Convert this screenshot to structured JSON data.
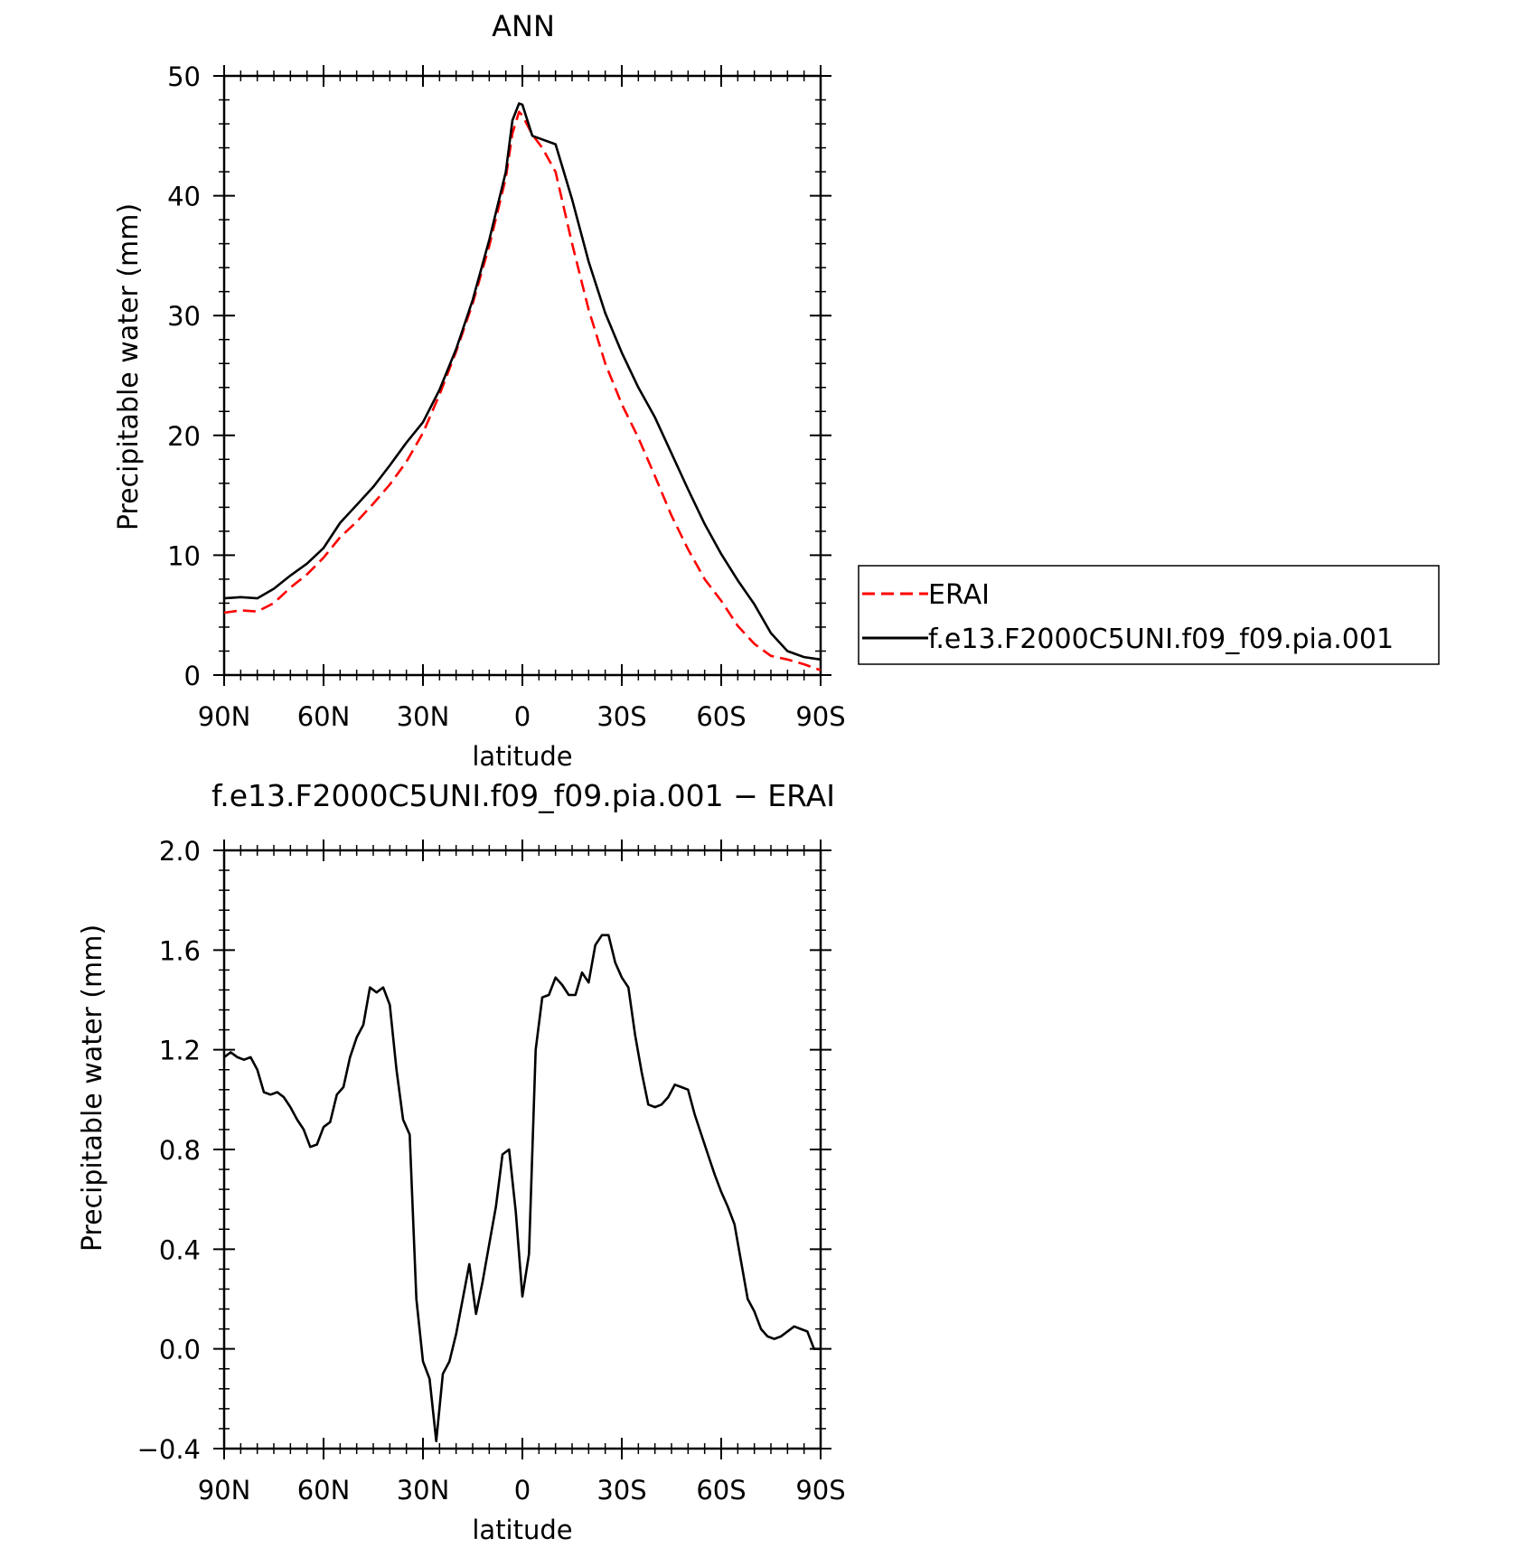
{
  "chart_data": [
    {
      "type": "line",
      "title": "ANN",
      "xlabel": "latitude",
      "ylabel": "Precipitable water (mm)",
      "x_ticks": [
        "90N",
        "60N",
        "30N",
        "0",
        "30S",
        "60S",
        "90S"
      ],
      "xlim": [
        -90,
        90
      ],
      "ylim": [
        0,
        50
      ],
      "y_ticks": [
        "0",
        "10",
        "20",
        "30",
        "40",
        "50"
      ],
      "grid": false,
      "legend": "right",
      "series": [
        {
          "name": "ERAI",
          "color": "#ff0000",
          "dash": "dashed",
          "x": [
            -90,
            -85,
            -80,
            -75,
            -70,
            -65,
            -60,
            -55,
            -50,
            -45,
            -40,
            -35,
            -30,
            -25,
            -20,
            -15,
            -10,
            -5,
            -3,
            -1,
            0,
            3,
            6,
            10,
            15,
            20,
            25,
            30,
            35,
            40,
            45,
            50,
            55,
            60,
            65,
            70,
            75,
            80,
            85,
            90
          ],
          "values": [
            5.2,
            5.4,
            5.3,
            6.0,
            7.3,
            8.4,
            9.8,
            11.5,
            12.8,
            14.3,
            15.9,
            17.8,
            20.2,
            23.4,
            27.0,
            31.0,
            35.8,
            41.5,
            45.2,
            47.0,
            46.7,
            45.1,
            44.0,
            42.0,
            36.0,
            30.5,
            26.0,
            22.6,
            19.8,
            16.6,
            13.3,
            10.5,
            8.0,
            6.2,
            4.1,
            2.6,
            1.6,
            1.3,
            0.9,
            0.4
          ]
        },
        {
          "name": "f.e13.F2000C5UNI.f09_f09.pia.001",
          "color": "#000000",
          "dash": "solid",
          "x": [
            -90,
            -85,
            -80,
            -75,
            -70,
            -65,
            -60,
            -55,
            -50,
            -45,
            -40,
            -35,
            -30,
            -25,
            -20,
            -15,
            -10,
            -5,
            -3,
            -1,
            0,
            3,
            6,
            10,
            15,
            20,
            25,
            30,
            35,
            40,
            45,
            50,
            55,
            60,
            65,
            70,
            75,
            80,
            85,
            90
          ],
          "values": [
            6.4,
            6.5,
            6.4,
            7.2,
            8.3,
            9.3,
            10.6,
            12.7,
            14.2,
            15.7,
            17.5,
            19.4,
            21.1,
            23.8,
            27.2,
            31.3,
            36.3,
            42.0,
            46.3,
            47.7,
            47.6,
            45.0,
            44.7,
            44.3,
            39.7,
            34.5,
            30.2,
            26.9,
            24.0,
            21.5,
            18.5,
            15.5,
            12.6,
            10.1,
            7.9,
            5.9,
            3.5,
            2.0,
            1.5,
            1.3
          ]
        }
      ]
    },
    {
      "type": "line",
      "title": "f.e13.F2000C5UNI.f09_f09.pia.001 − ERAI",
      "xlabel": "latitude",
      "ylabel": "Precipitable water (mm)",
      "x_ticks": [
        "90N",
        "60N",
        "30N",
        "0",
        "30S",
        "60S",
        "90S"
      ],
      "xlim": [
        -90,
        90
      ],
      "ylim": [
        -0.4,
        2.0
      ],
      "y_ticks": [
        "−0.4",
        "0.0",
        "0.4",
        "0.8",
        "1.2",
        "1.6",
        "2.0"
      ],
      "grid": false,
      "series": [
        {
          "color": "#000000",
          "dash": "solid",
          "x": [
            -90,
            -88,
            -86,
            -84,
            -82,
            -80,
            -78,
            -76,
            -74,
            -72,
            -70,
            -68,
            -66,
            -64,
            -62,
            -60,
            -58,
            -56,
            -54,
            -52,
            -50,
            -48,
            -46,
            -44,
            -42,
            -40,
            -38,
            -36,
            -34,
            -32,
            -30,
            -28,
            -26,
            -24,
            -22,
            -20,
            -18,
            -16,
            -14,
            -12,
            -10,
            -8,
            -6,
            -4,
            -2,
            0,
            2,
            4,
            6,
            8,
            10,
            12,
            14,
            16,
            18,
            20,
            22,
            24,
            26,
            28,
            30,
            32,
            34,
            36,
            38,
            40,
            42,
            44,
            46,
            48,
            50,
            52,
            54,
            56,
            58,
            60,
            62,
            64,
            66,
            68,
            70,
            72,
            74,
            76,
            78,
            80,
            82,
            84,
            86,
            88,
            90
          ],
          "values": [
            1.17,
            1.19,
            1.17,
            1.16,
            1.17,
            1.12,
            1.03,
            1.02,
            1.03,
            1.01,
            0.97,
            0.92,
            0.88,
            0.81,
            0.82,
            0.89,
            0.91,
            1.02,
            1.05,
            1.17,
            1.25,
            1.3,
            1.45,
            1.43,
            1.45,
            1.38,
            1.12,
            0.92,
            0.86,
            0.2,
            -0.05,
            -0.12,
            -0.37,
            -0.1,
            -0.05,
            0.06,
            0.2,
            0.34,
            0.14,
            0.27,
            0.42,
            0.57,
            0.78,
            0.8,
            0.55,
            0.21,
            0.38,
            1.2,
            1.41,
            1.42,
            1.49,
            1.46,
            1.42,
            1.42,
            1.51,
            1.47,
            1.62,
            1.66,
            1.66,
            1.55,
            1.49,
            1.45,
            1.26,
            1.11,
            0.98,
            0.97,
            0.98,
            1.01,
            1.06,
            1.05,
            1.04,
            0.94,
            0.86,
            0.78,
            0.7,
            0.63,
            0.57,
            0.5,
            0.35,
            0.2,
            0.15,
            0.08,
            0.05,
            0.04,
            0.05,
            0.07,
            0.09,
            0.08,
            0.07,
            0.0,
            0.0
          ]
        }
      ]
    }
  ]
}
